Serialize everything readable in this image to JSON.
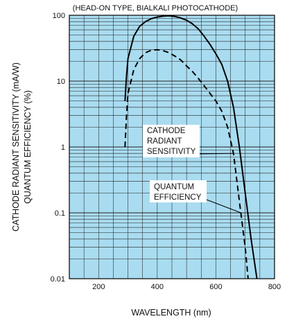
{
  "chart_data": {
    "type": "line",
    "title": "(HEAD-ON TYPE, BIALKALI PHOTOCATHODE)",
    "xlabel": "WAVELENGTH (nm)",
    "ylabel_lines": [
      "CATHODE RADIANT SENSITIVITY (mA/W)",
      "QUANTUM EFFICIENCY (%)"
    ],
    "xlim": [
      100,
      800
    ],
    "ylim": [
      0.01,
      100
    ],
    "yscale": "log",
    "grid": true,
    "background_color": "#a9dcf0",
    "x_ticks": [
      200,
      400,
      600,
      800
    ],
    "x_tick_labels": [
      "200",
      "400",
      "600",
      "800"
    ],
    "y_ticks": [
      0.01,
      0.1,
      1,
      10,
      100
    ],
    "y_tick_labels": [
      "0.01",
      "0.1",
      "1",
      "10",
      "100"
    ],
    "series": [
      {
        "name": "CATHODE RADIANT SENSITIVITY",
        "style": "solid",
        "points": [
          [
            290,
            5
          ],
          [
            295,
            12
          ],
          [
            300,
            22
          ],
          [
            320,
            48
          ],
          [
            340,
            68
          ],
          [
            360,
            80
          ],
          [
            380,
            89
          ],
          [
            400,
            94
          ],
          [
            420,
            97
          ],
          [
            440,
            98
          ],
          [
            460,
            96
          ],
          [
            480,
            91
          ],
          [
            500,
            84
          ],
          [
            520,
            74
          ],
          [
            540,
            62
          ],
          [
            560,
            48
          ],
          [
            580,
            36
          ],
          [
            600,
            26
          ],
          [
            620,
            18
          ],
          [
            640,
            10
          ],
          [
            660,
            4
          ],
          [
            680,
            1
          ],
          [
            700,
            0.2
          ],
          [
            720,
            0.04
          ],
          [
            740,
            0.01
          ]
        ]
      },
      {
        "name": "QUANTUM EFFICIENCY",
        "style": "dashed",
        "points": [
          [
            290,
            1
          ],
          [
            295,
            3
          ],
          [
            300,
            6.5
          ],
          [
            320,
            15
          ],
          [
            340,
            22
          ],
          [
            360,
            27
          ],
          [
            380,
            29.5
          ],
          [
            400,
            30
          ],
          [
            420,
            29
          ],
          [
            440,
            27
          ],
          [
            460,
            24
          ],
          [
            480,
            21
          ],
          [
            500,
            17
          ],
          [
            520,
            14
          ],
          [
            540,
            11
          ],
          [
            560,
            8.5
          ],
          [
            580,
            6.5
          ],
          [
            600,
            5
          ],
          [
            620,
            3.5
          ],
          [
            640,
            2
          ],
          [
            660,
            0.8
          ],
          [
            680,
            0.15
          ],
          [
            700,
            0.03
          ],
          [
            710,
            0.01
          ]
        ]
      }
    ],
    "annotations": [
      {
        "lines": [
          "CATHODE",
          "RADIANT",
          "SENSITIVITY"
        ],
        "series": "CATHODE RADIANT SENSITIVITY"
      },
      {
        "lines": [
          "QUANTUM",
          "EFFICIENCY"
        ],
        "series": "QUANTUM EFFICIENCY"
      }
    ]
  }
}
